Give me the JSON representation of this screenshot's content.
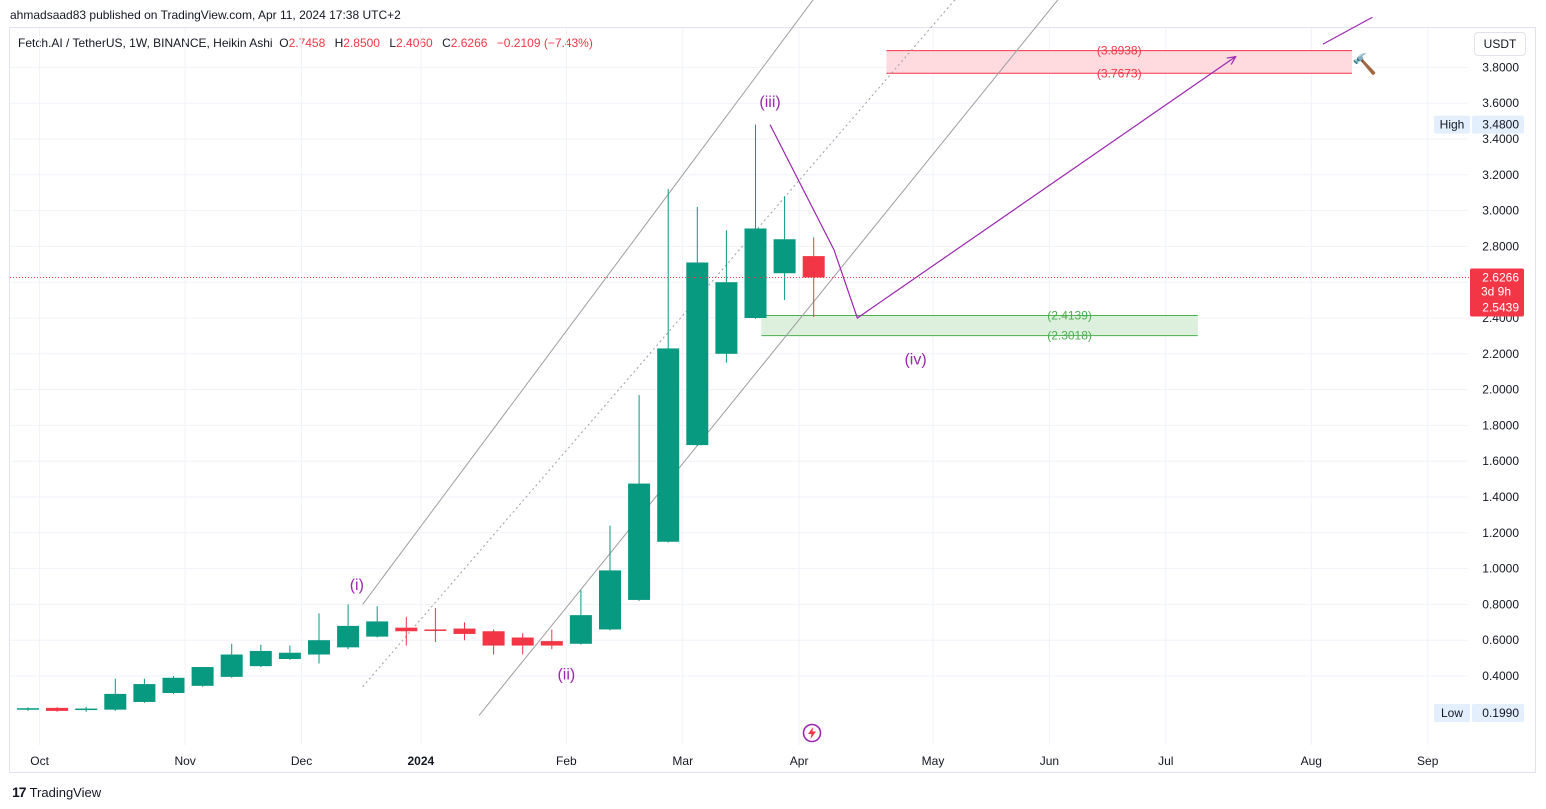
{
  "header": {
    "published_line": "ahmadsaad83 published on TradingView.com, Apr 11, 2024 17:38 UTC+2"
  },
  "legend": {
    "symbol": "Fetch.AI / TetherUS, 1W, BINANCE, Heikin Ashi",
    "o_label": "O",
    "o_value": "2.7458",
    "h_label": "H",
    "h_value": "2.8500",
    "l_label": "L",
    "l_value": "2.4060",
    "c_label": "C",
    "c_value": "2.6266",
    "change": "−0.2109 (−7.43%)"
  },
  "currency": "USDT",
  "footer": {
    "brand": "TradingView"
  },
  "colors": {
    "up": "#089981",
    "down": "#f23645",
    "wave": "#9c27b0",
    "target_zone": "#ffd6da",
    "support_zone": "#d8eed9"
  },
  "chart_data": {
    "type": "candlestick",
    "style": "Heikin Ashi",
    "interval": "1W",
    "ylim": [
      0.18,
      3.95
    ],
    "y_ticks": [
      "0.4000",
      "0.6000",
      "0.8000",
      "1.0000",
      "1.2000",
      "1.4000",
      "1.6000",
      "1.8000",
      "2.0000",
      "2.2000",
      "2.4000",
      "2.6000",
      "2.8000",
      "3.0000",
      "3.2000",
      "3.4000",
      "3.6000",
      "3.8000"
    ],
    "x_ticks": [
      {
        "label": "Oct",
        "week": 0.4
      },
      {
        "label": "Nov",
        "week": 5.4
      },
      {
        "label": "Dec",
        "week": 9.4
      },
      {
        "label": "2024",
        "week": 13.5,
        "bold": true
      },
      {
        "label": "Feb",
        "week": 18.5
      },
      {
        "label": "Mar",
        "week": 22.5
      },
      {
        "label": "Apr",
        "week": 26.5
      },
      {
        "label": "May",
        "week": 31.1
      },
      {
        "label": "Jun",
        "week": 35.1
      },
      {
        "label": "Jul",
        "week": 39.1
      },
      {
        "label": "Aug",
        "week": 44.1
      },
      {
        "label": "Sep",
        "week": 48.1
      }
    ],
    "candles": [
      {
        "o": 0.217,
        "h": 0.225,
        "l": 0.205,
        "c": 0.22
      },
      {
        "o": 0.222,
        "h": 0.226,
        "l": 0.2,
        "c": 0.205
      },
      {
        "o": 0.212,
        "h": 0.228,
        "l": 0.2,
        "c": 0.218
      },
      {
        "o": 0.212,
        "h": 0.385,
        "l": 0.205,
        "c": 0.3
      },
      {
        "o": 0.255,
        "h": 0.385,
        "l": 0.25,
        "c": 0.355
      },
      {
        "o": 0.305,
        "h": 0.4,
        "l": 0.3,
        "c": 0.39
      },
      {
        "o": 0.345,
        "h": 0.45,
        "l": 0.34,
        "c": 0.45
      },
      {
        "o": 0.395,
        "h": 0.58,
        "l": 0.39,
        "c": 0.52
      },
      {
        "o": 0.455,
        "h": 0.575,
        "l": 0.45,
        "c": 0.54
      },
      {
        "o": 0.495,
        "h": 0.57,
        "l": 0.49,
        "c": 0.53
      },
      {
        "o": 0.52,
        "h": 0.75,
        "l": 0.47,
        "c": 0.6
      },
      {
        "o": 0.56,
        "h": 0.8,
        "l": 0.55,
        "c": 0.68
      },
      {
        "o": 0.62,
        "h": 0.79,
        "l": 0.615,
        "c": 0.705
      },
      {
        "o": 0.67,
        "h": 0.73,
        "l": 0.57,
        "c": 0.65
      },
      {
        "o": 0.66,
        "h": 0.78,
        "l": 0.59,
        "c": 0.655
      },
      {
        "o": 0.665,
        "h": 0.7,
        "l": 0.6,
        "c": 0.635
      },
      {
        "o": 0.65,
        "h": 0.66,
        "l": 0.52,
        "c": 0.57
      },
      {
        "o": 0.615,
        "h": 0.64,
        "l": 0.52,
        "c": 0.57
      },
      {
        "o": 0.595,
        "h": 0.66,
        "l": 0.55,
        "c": 0.57
      },
      {
        "o": 0.58,
        "h": 0.88,
        "l": 0.575,
        "c": 0.74
      },
      {
        "o": 0.66,
        "h": 1.24,
        "l": 0.655,
        "c": 0.99
      },
      {
        "o": 0.825,
        "h": 1.97,
        "l": 0.82,
        "c": 1.475
      },
      {
        "o": 1.15,
        "h": 3.12,
        "l": 1.145,
        "c": 2.23
      },
      {
        "o": 1.69,
        "h": 3.02,
        "l": 1.685,
        "c": 2.71
      },
      {
        "o": 2.2,
        "h": 2.89,
        "l": 2.15,
        "c": 2.6
      },
      {
        "o": 2.4,
        "h": 3.48,
        "l": 2.395,
        "c": 2.9
      },
      {
        "o": 2.65,
        "h": 3.08,
        "l": 2.5,
        "c": 2.84
      },
      {
        "o": 2.7458,
        "h": 2.85,
        "l": 2.406,
        "c": 2.6266
      }
    ],
    "price_labels": [
      {
        "text": "High",
        "value": "3.4800",
        "at": 3.48
      },
      {
        "text": "Low",
        "value": "0.1990",
        "at": 0.199
      }
    ],
    "last_price": {
      "value": "2.6266",
      "countdown": "3d 9h",
      "prev_value": "2.5439",
      "at": 2.6266
    },
    "zones": [
      {
        "kind": "target",
        "upper": 3.8938,
        "lower": 3.7673,
        "upper_label": "(3.8938)",
        "lower_label": "(3.7673)",
        "from_week": 29.5,
        "to_week": 45.5
      },
      {
        "kind": "support",
        "upper": 2.4139,
        "lower": 2.3018,
        "upper_label": "(2.4139)",
        "lower_label": "(2.3018)",
        "from_week": 25.2,
        "to_week": 40.2
      }
    ],
    "wave_labels": [
      {
        "text": "(i)",
        "week": 11.3,
        "price": 0.88
      },
      {
        "text": "(ii)",
        "week": 18.5,
        "price": 0.38
      },
      {
        "text": "(iii)",
        "week": 25.5,
        "price": 3.58
      },
      {
        "text": "(iv)",
        "week": 30.5,
        "price": 2.14
      }
    ],
    "projection_path": [
      {
        "week": 25.5,
        "price": 3.48
      },
      {
        "week": 27.7,
        "price": 2.78
      },
      {
        "week": 28.5,
        "price": 2.4
      },
      {
        "week": 41.5,
        "price": 3.86
      }
    ],
    "projection_continuation": [
      {
        "week": 44.5,
        "price": 3.93
      },
      {
        "week": 46.2,
        "price": 4.08
      }
    ],
    "channel_lines": [
      {
        "style": "solid",
        "from": {
          "week": 11.5,
          "price": 0.8
        },
        "to": {
          "week": 28.0,
          "price": 4.4
        }
      },
      {
        "style": "dotted",
        "from": {
          "week": 11.5,
          "price": 0.34
        },
        "to": {
          "week": 32.5,
          "price": 4.3
        }
      },
      {
        "style": "solid",
        "from": {
          "week": 15.5,
          "price": 0.18
        },
        "to": {
          "week": 36.0,
          "price": 4.3
        }
      }
    ]
  }
}
